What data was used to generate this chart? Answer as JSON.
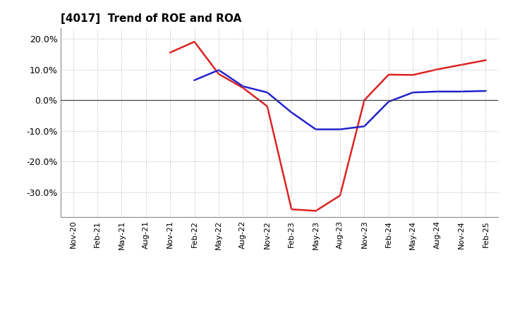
{
  "title": "[4017]  Trend of ROE and ROA",
  "title_fontsize": 11,
  "background_color": "#ffffff",
  "plot_bg_color": "#ffffff",
  "grid_color": "#aaaaaa",
  "ylim": [
    -0.38,
    0.235
  ],
  "yticks": [
    -0.3,
    -0.2,
    -0.1,
    0.0,
    0.1,
    0.2
  ],
  "x_labels": [
    "Nov-20",
    "Feb-21",
    "May-21",
    "Aug-21",
    "Nov-21",
    "Feb-22",
    "May-22",
    "Aug-22",
    "Nov-22",
    "Feb-23",
    "May-23",
    "Aug-23",
    "Nov-23",
    "Feb-24",
    "May-24",
    "Aug-24",
    "Nov-24",
    "Feb-25"
  ],
  "roe_values": [
    null,
    null,
    null,
    null,
    0.155,
    0.19,
    0.085,
    0.04,
    -0.02,
    -0.355,
    -0.36,
    -0.31,
    0.0,
    0.083,
    0.082,
    0.1,
    0.115,
    0.13
  ],
  "roa_values": [
    null,
    null,
    null,
    null,
    null,
    0.065,
    0.098,
    0.045,
    0.025,
    -0.04,
    -0.095,
    -0.095,
    -0.085,
    -0.005,
    0.025,
    0.028,
    0.028,
    0.03
  ],
  "roe_color": "#dd2222",
  "roa_color": "#2222cc",
  "linewidth": 1.8,
  "legend_ncol": 2,
  "ylabel_fontsize": 9,
  "xlabel_fontsize": 8
}
